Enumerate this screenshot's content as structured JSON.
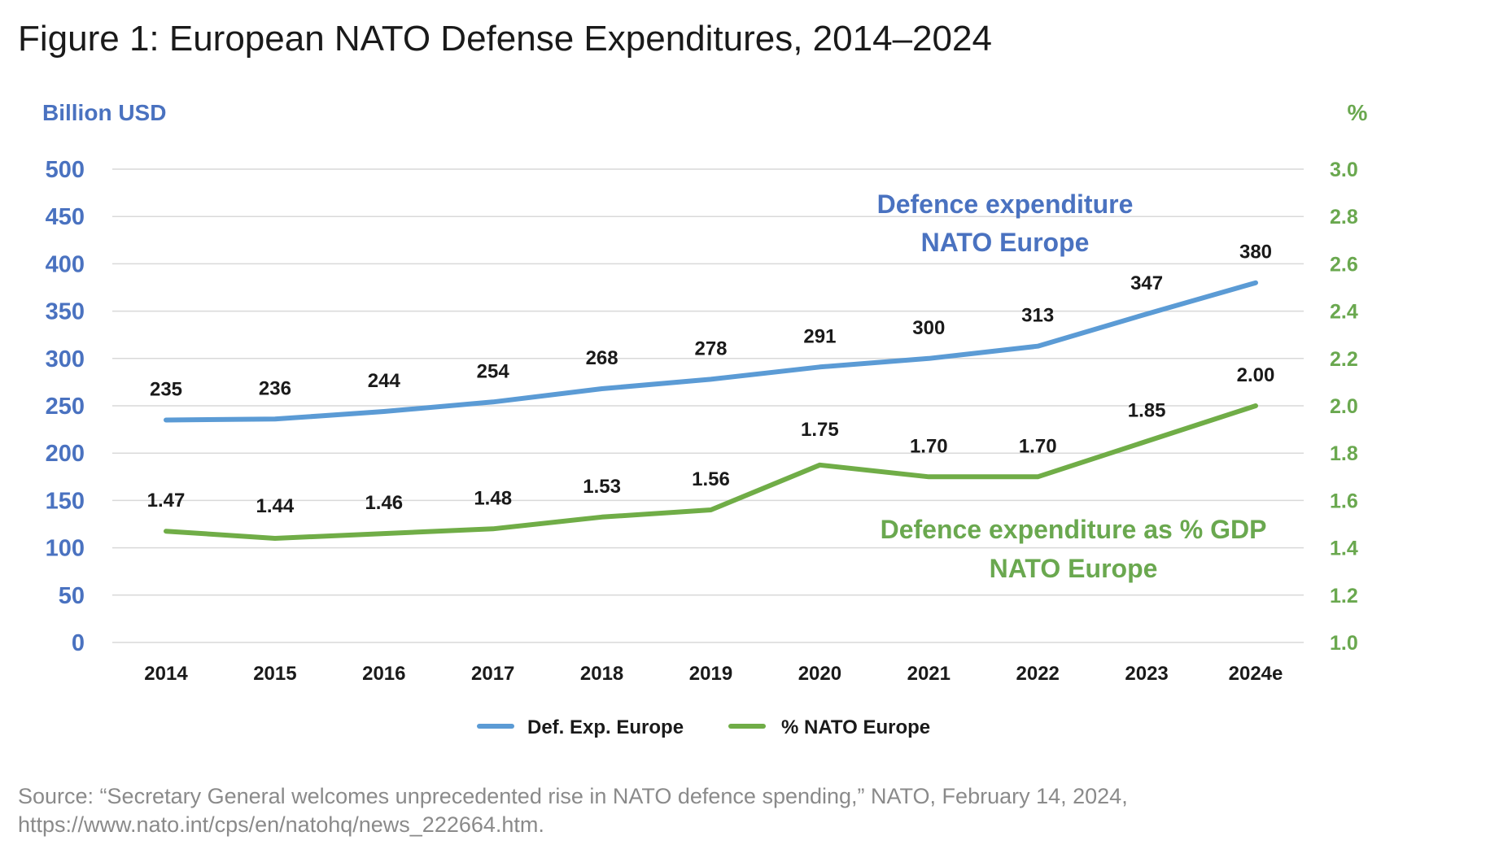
{
  "title": "Figure 1: European NATO Defense Expenditures, 2014–2024",
  "colors": {
    "primary_series": "#5b9bd5",
    "secondary_series": "#70ad47",
    "left_axis_text": "#4a72c0",
    "right_axis_text": "#6aa84f"
  },
  "chart_data": {
    "type": "line",
    "categories": [
      "2014",
      "2015",
      "2016",
      "2017",
      "2018",
      "2019",
      "2020",
      "2021",
      "2022",
      "2023",
      "2024e"
    ],
    "y_left_label": "Billion USD",
    "y_right_label": "%",
    "y_left_ticks": [
      "0",
      "50",
      "100",
      "150",
      "200",
      "250",
      "300",
      "350",
      "400",
      "450",
      "500"
    ],
    "y_right_ticks": [
      "1.0",
      "1.2",
      "1.4",
      "1.6",
      "1.8",
      "2.0",
      "2.2",
      "2.4",
      "2.6",
      "2.8",
      "3.0"
    ],
    "ylim_left": [
      0,
      500
    ],
    "ylim_right": [
      1.0,
      3.0
    ],
    "grid": true,
    "legend_position": "bottom-center",
    "series": [
      {
        "name": "Def. Exp. Europe",
        "axis": "left",
        "values": [
          235,
          236,
          244,
          254,
          268,
          278,
          291,
          300,
          313,
          347,
          380
        ],
        "labels": [
          "235",
          "236",
          "244",
          "254",
          "268",
          "278",
          "291",
          "300",
          "313",
          "347",
          "380"
        ]
      },
      {
        "name": "% NATO Europe",
        "axis": "right",
        "values": [
          1.47,
          1.44,
          1.46,
          1.48,
          1.53,
          1.56,
          1.75,
          1.7,
          1.7,
          1.85,
          2.0
        ],
        "labels": [
          "1.47",
          "1.44",
          "1.46",
          "1.48",
          "1.53",
          "1.56",
          "1.75",
          "1.70",
          "1.70",
          "1.85",
          "2.00"
        ]
      }
    ],
    "annotations": {
      "blue_line1": "Defence expenditure",
      "blue_line2": "NATO Europe",
      "green_line1": "Defence expenditure as % GDP",
      "green_line2": "NATO Europe"
    }
  },
  "source": {
    "line1": "Source: “Secretary General welcomes unprecedented rise in NATO defence spending,” NATO, February 14, 2024,",
    "line2": "https://www.nato.int/cps/en/natohq/news_222664.htm."
  }
}
